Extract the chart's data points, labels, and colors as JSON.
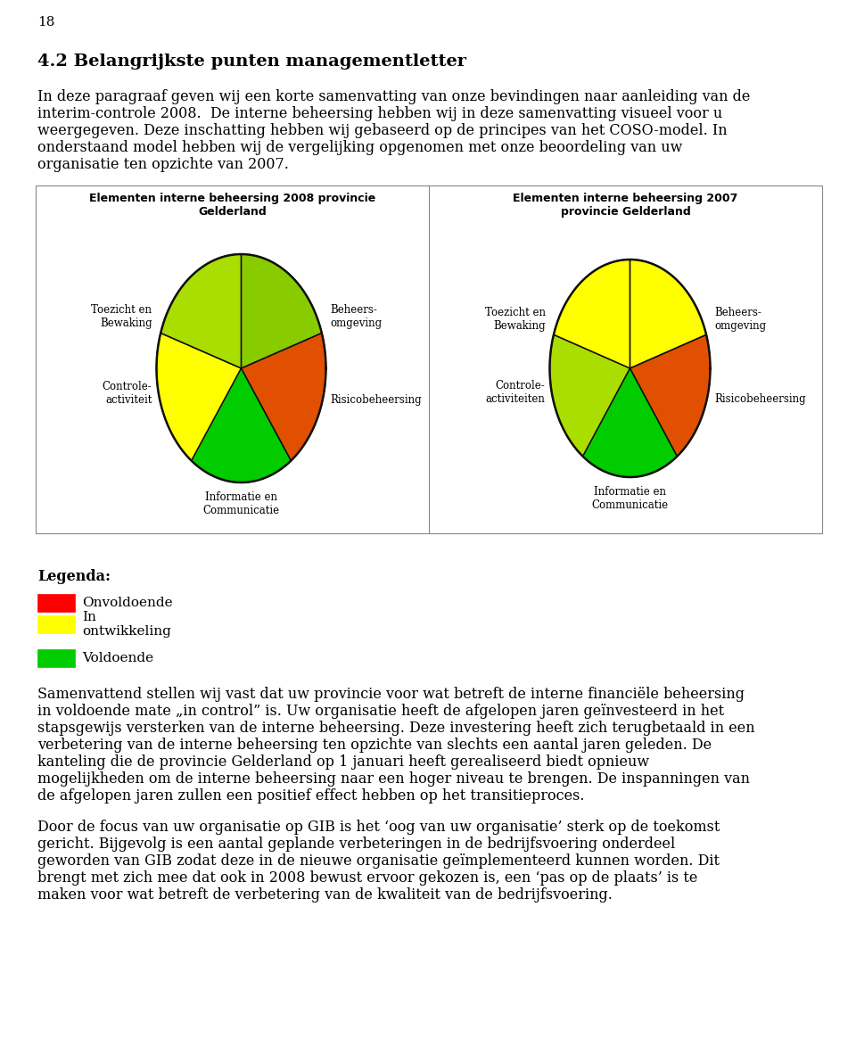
{
  "page_number": "18",
  "title_h2": "4.2 Belangrijkste punten managementletter",
  "chart1_title": "Elementen interne beheersing 2008 provincie\nGelderland",
  "chart2_title": "Elementen interne beheersing 2007\nprovincie Gelderland",
  "chart1_colors": [
    "#88CC00",
    "#FFCC00",
    "#00CC00",
    "#FFFF00",
    "#CCEE00"
  ],
  "chart2_colors": [
    "#FFFF00",
    "#FFAA00",
    "#00CC00",
    "#AADD00",
    "#FFFF00"
  ],
  "chart1_risico_color": "#DD3300",
  "chart2_risico_color": "#DD4400",
  "legend_items": [
    {
      "color": "#FF0000",
      "label": "Onvoldoende"
    },
    {
      "color": "#FFFF00",
      "label": "In\nontwikkeling"
    },
    {
      "color": "#00CC00",
      "label": "Voldoende"
    }
  ],
  "para1_lines": [
    "In deze paragraaf geven wij een korte samenvatting van onze bevindingen naar aanleiding van de",
    "interim-controle 2008.  De interne beheersing hebben wij in deze samenvatting visueel voor u",
    "weergegeven. Deze inschatting hebben wij gebaseerd op de principes van het COSO-model. In",
    "onderstaand model hebben wij de vergelijking opgenomen met onze beoordeling van uw",
    "organisatie ten opzichte van 2007."
  ],
  "para2_lines": [
    "Samenvattend stellen wij vast dat uw provincie voor wat betreft de interne financiële beheersing",
    "in voldoende mate „in control” is. Uw organisatie heeft de afgelopen jaren geïnvesteerd in het",
    "stapsgewijs versterken van de interne beheersing. Deze investering heeft zich terugbetaald in een",
    "verbetering van de interne beheersing ten opzichte van slechts een aantal jaren geleden. De",
    "kanteling die de provincie Gelderland op 1 januari heeft gerealiseerd biedt opnieuw",
    "mogelijkheden om de interne beheersing naar een hoger niveau te brengen. De inspanningen van",
    "de afgelopen jaren zullen een positief effect hebben op het transitieproces."
  ],
  "para3_lines": [
    "Door de focus van uw organisatie op GIB is het ‘oog van uw organisatie’ sterk op de toekomst",
    "gericht. Bijgevolg is een aantal geplande verbeteringen in de bedrijfsvoering onderdeel",
    "geworden van GIB zodat deze in de nieuwe organisatie geïmplementeerd kunnen worden. Dit",
    "brengt met zich mee dat ook in 2008 bewust ervoor gekozen is, een ‘pas op de plaats’ is te",
    "maken voor wat betreft de verbetering van de kwaliteit van de bedrijfsvoering."
  ],
  "background_color": "#FFFFFF"
}
